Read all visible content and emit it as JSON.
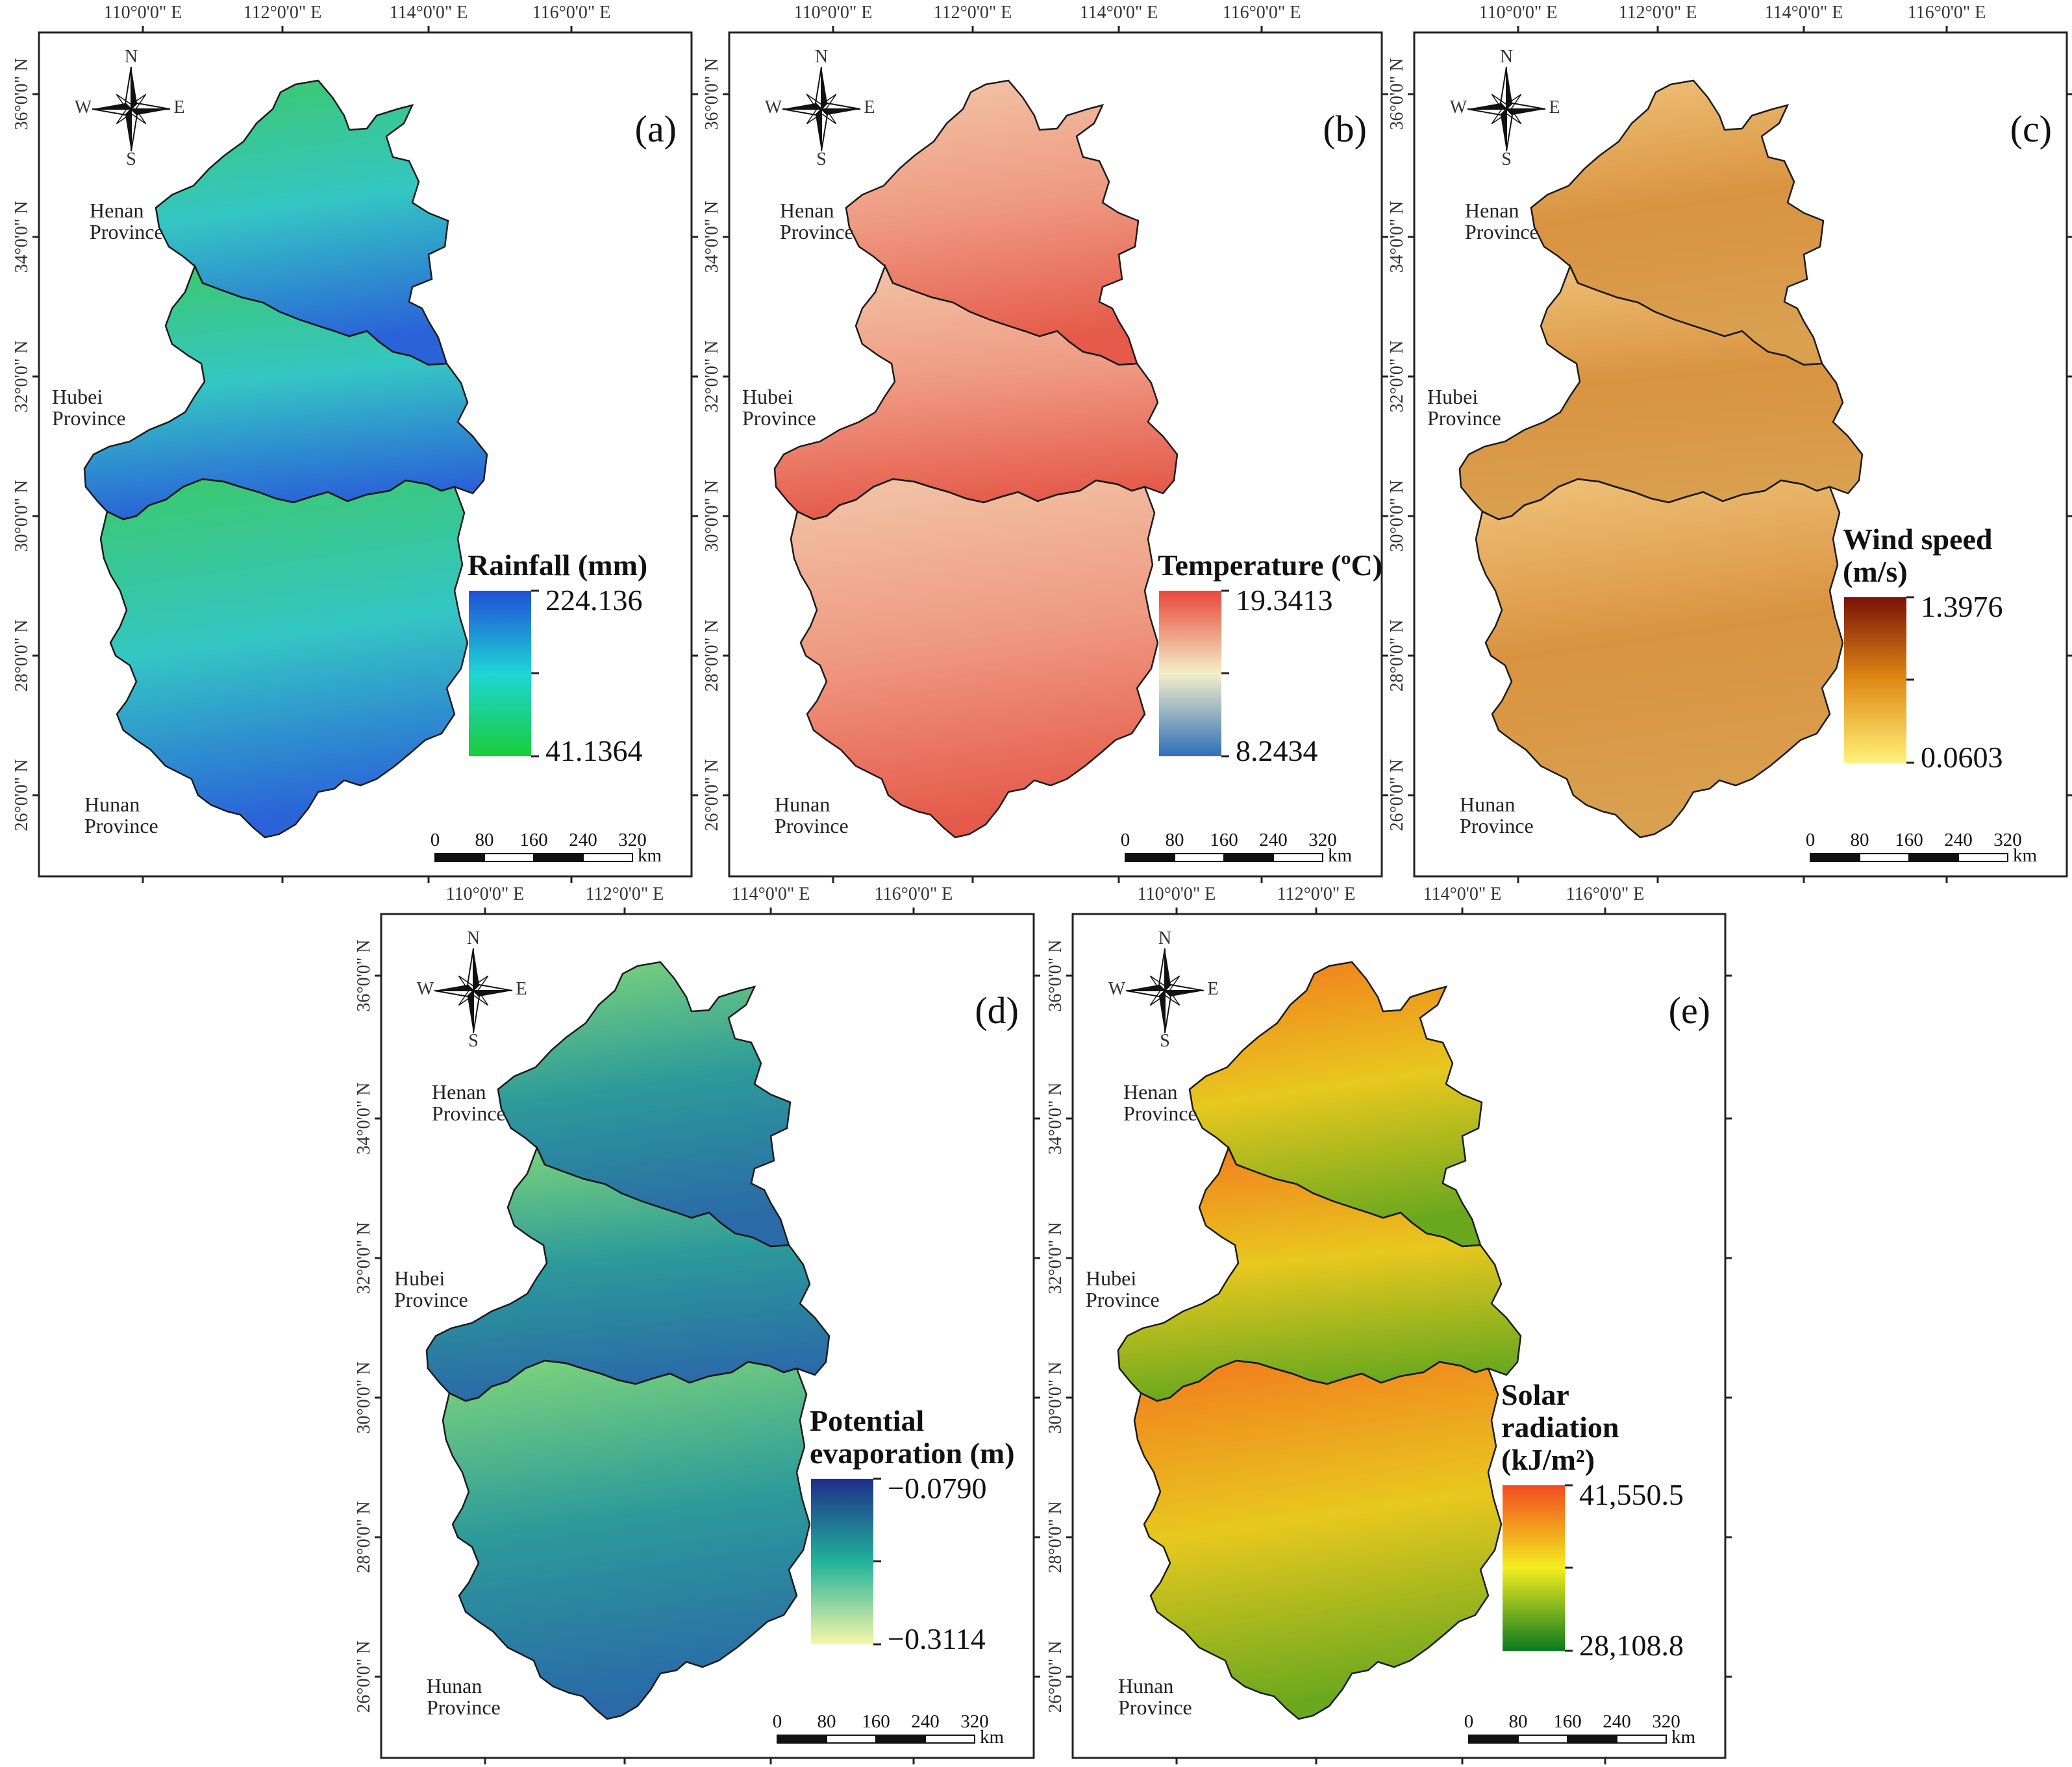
{
  "lon_labels": [
    "110°0'0\" E",
    "112°0'0\" E",
    "114°0'0\" E",
    "116°0'0\" E"
  ],
  "lat_labels": [
    "36°0'0\" N",
    "34°0'0\" N",
    "32°0'0\" N",
    "30°0'0\" N",
    "28°0'0\" N",
    "26°0'0\" N"
  ],
  "provinces": {
    "henan": [
      "Henan",
      "Province"
    ],
    "hubei": [
      "Hubei",
      "Province"
    ],
    "hunan": [
      "Hunan",
      "Province"
    ]
  },
  "compass": {
    "n": "N",
    "s": "S",
    "e": "E",
    "w": "W"
  },
  "scale_bar": {
    "ticks": [
      "0",
      "80",
      "160",
      "240",
      "320"
    ],
    "unit": "km"
  },
  "panels": [
    {
      "label": "(a)",
      "legend_title": [
        "Rainfall (mm)"
      ],
      "max": "224.136",
      "min": "41.1364",
      "colors": {
        "high": "#1f4fd6",
        "mid": "#1ed6d6",
        "low": "#19cc3a",
        "map_top": "#3cc86a",
        "map_mid": "#34c6c4",
        "map_bottom": "#2a62d8"
      }
    },
    {
      "label": "(b)",
      "legend_title": [
        "Temperature (ºC)"
      ],
      "max": "19.3413",
      "min": "8.2434",
      "colors": {
        "high": "#e8473a",
        "mid": "#f3efc8",
        "low": "#2f6fb8",
        "map_top": "#f2c6a8",
        "map_mid": "#ef9a82",
        "map_bottom": "#e55a4a"
      }
    },
    {
      "label": "(c)",
      "legend_title": [
        "Wind speed",
        "(m/s)"
      ],
      "max": "1.3976",
      "min": "0.0603",
      "colors": {
        "high": "#7a1208",
        "mid": "#e08a14",
        "low": "#fff27a",
        "map_top": "#f0c27a",
        "map_mid": "#d99340",
        "map_bottom": "#d9a050"
      }
    },
    {
      "label": "(d)",
      "legend_title": [
        "Potential",
        "evaporation (m)"
      ],
      "max": "−0.0790",
      "min": "−0.3114",
      "colors": {
        "high": "#1f2d8a",
        "mid": "#1fb39a",
        "low": "#f7f7a8",
        "map_top": "#7fd67a",
        "map_mid": "#2c9a9a",
        "map_bottom": "#2a6aa8"
      }
    },
    {
      "label": "(e)",
      "legend_title": [
        "Solar",
        "radiation",
        "(kJ/m²)"
      ],
      "max": "41,550.5",
      "min": "28,108.8",
      "colors": {
        "high": "#f24a1e",
        "mid": "#f2ee1e",
        "low": "#0a7a1e",
        "map_top": "#f27a1e",
        "map_mid": "#e8c81e",
        "map_bottom": "#6aa81e"
      }
    }
  ]
}
